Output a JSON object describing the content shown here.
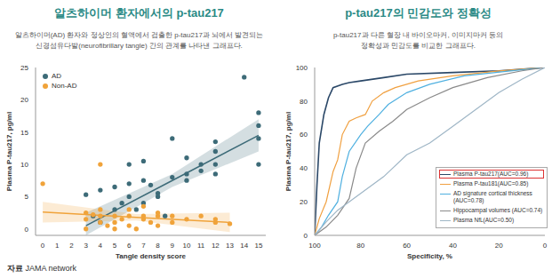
{
  "chart_data": [
    {
      "type": "scatter",
      "title": "알츠하이머 환자에서의 p-tau217",
      "subtitle": [
        "알츠하이머(AD) 환자와 정상인의 혈액에서 검출한 p-tau217과 뇌에서 발견되는",
        "신경섬유다발(neurofibrillary tangle) 간의 관계를 나타낸 그래프다."
      ],
      "x_label": "Tangle density score",
      "y_label": "Plasma P-tau217, pg/ml",
      "xlim": [
        -0.5,
        15.5
      ],
      "xticks": [
        0,
        1,
        2,
        3,
        4,
        5,
        6,
        7,
        8,
        9,
        10,
        11,
        12,
        13,
        14,
        15
      ],
      "ylim": [
        -1,
        25
      ],
      "yticks": [
        0,
        5,
        10,
        15,
        20,
        25
      ],
      "grid": false,
      "legend": "upper left",
      "series": [
        {
          "name": "AD",
          "color": "#3d6b78",
          "marker": "circle",
          "x": [
            3,
            3.5,
            4,
            4,
            5,
            5,
            5.5,
            6,
            6,
            6,
            6.5,
            7,
            7,
            7,
            7.5,
            8,
            8,
            8.5,
            9,
            9,
            10,
            10,
            10,
            11,
            11,
            12,
            12,
            12,
            12,
            14,
            15,
            15,
            15,
            15
          ],
          "values": [
            5.3,
            2,
            1,
            6,
            3,
            6.5,
            4,
            5,
            7,
            10,
            3,
            7.5,
            10.5,
            4,
            6.8,
            5,
            5.5,
            2,
            14,
            8,
            7.5,
            11,
            8.5,
            9,
            10,
            13.5,
            8.5,
            12,
            10,
            23.5,
            18,
            14,
            16,
            10
          ],
          "fit": {
            "x": [
              3,
              9,
              15
            ],
            "values": [
              0.5,
              7.5,
              14.5
            ],
            "lower": [
              -1,
              6.5,
              12
            ],
            "upper": [
              2.5,
              8.5,
              17
            ]
          }
        },
        {
          "name": "Non-AD",
          "color": "#f0a33a",
          "marker": "circle",
          "x": [
            0,
            3,
            3,
            3,
            3.5,
            4,
            4,
            4,
            4,
            4.5,
            5,
            5,
            5,
            5.5,
            6,
            6,
            6,
            6.5,
            7,
            7,
            7,
            7.5,
            8,
            8,
            8,
            9,
            9,
            10,
            11,
            12,
            12,
            13
          ],
          "values": [
            7,
            1.5,
            2.5,
            0,
            2.2,
            10,
            2,
            1,
            3,
            0.5,
            2,
            1,
            0,
            1.5,
            2,
            3,
            0.5,
            0,
            2,
            1.5,
            3.5,
            1,
            2,
            2.5,
            0.5,
            1,
            2,
            1.5,
            2,
            1,
            1.5,
            0.8
          ],
          "fit": {
            "x": [
              0,
              6.5,
              13
            ],
            "values": [
              2.6,
              1.8,
              1
            ],
            "lower": [
              1,
              1.3,
              -0.5
            ],
            "upper": [
              4.2,
              2.3,
              2.5
            ]
          }
        }
      ]
    },
    {
      "type": "line",
      "title": "p-tau217의 민감도와 정확성",
      "subtitle": [
        "p-tau217과 다른 혈장 내 바이오마커, 이미지마커 등의",
        "정확성과 민감도를 비교한 그래프다."
      ],
      "x_label": "Specificity, %",
      "y_label": "Plasma P-tau217, pg/ml",
      "xlim": [
        100,
        0
      ],
      "xticks": [
        100,
        80,
        60,
        40,
        20,
        0
      ],
      "ylim": [
        0,
        100
      ],
      "yticks": [
        0,
        20,
        40,
        60,
        80,
        100
      ],
      "grid": false,
      "legend": "lower right",
      "series": [
        {
          "name": "Plasma P-tau217(AUC=0.96)",
          "color": "#2b4868",
          "x": [
            100,
            99,
            98,
            96,
            94,
            92,
            88,
            85,
            80,
            70,
            60,
            40,
            20,
            0
          ],
          "values": [
            0,
            30,
            55,
            72,
            82,
            88,
            90,
            91,
            92,
            94,
            96,
            97,
            98,
            100
          ]
        },
        {
          "name": "Plasma P-tau181(AUC=0.85)",
          "color": "#f0a040",
          "x": [
            100,
            98,
            95,
            92,
            90,
            88,
            85,
            82,
            78,
            75,
            70,
            65,
            55,
            40,
            20,
            0
          ],
          "values": [
            0,
            10,
            20,
            38,
            45,
            60,
            68,
            70,
            72,
            80,
            85,
            88,
            92,
            95,
            98,
            100
          ]
        },
        {
          "name": "AD signature cortical thickness (AUC=0.78)",
          "color": "#4fb0e0",
          "x": [
            100,
            97,
            94,
            90,
            88,
            85,
            80,
            77,
            72,
            68,
            60,
            50,
            35,
            15,
            0
          ],
          "values": [
            0,
            5,
            12,
            20,
            35,
            50,
            60,
            65,
            72,
            78,
            85,
            90,
            95,
            98,
            100
          ]
        },
        {
          "name": "Hippocampal volumes (AUC=0.74)",
          "color": "#8a8a8a",
          "x": [
            100,
            95,
            90,
            85,
            82,
            78,
            72,
            66,
            60,
            50,
            40,
            25,
            10,
            0
          ],
          "values": [
            0,
            5,
            12,
            22,
            40,
            55,
            62,
            68,
            75,
            82,
            88,
            94,
            98,
            100
          ]
        },
        {
          "name": "Plasma NfL(AUC=0.50)",
          "color": "#9fb6c6",
          "x": [
            100,
            95,
            90,
            85,
            80,
            70,
            60,
            50,
            40,
            30,
            20,
            10,
            0
          ],
          "values": [
            0,
            8,
            15,
            20,
            25,
            35,
            48,
            55,
            65,
            75,
            85,
            93,
            100
          ]
        }
      ]
    }
  ],
  "source": {
    "label": "자료",
    "text": "JAMA network"
  }
}
